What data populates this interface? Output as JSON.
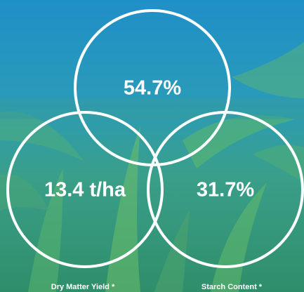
{
  "stats": [
    {
      "value": "54.7%"
    },
    {
      "value": "13.4 t/ha",
      "label": "Dry Matter Yield *"
    },
    {
      "value": "31.7%",
      "label": "Starch Content *"
    }
  ]
}
